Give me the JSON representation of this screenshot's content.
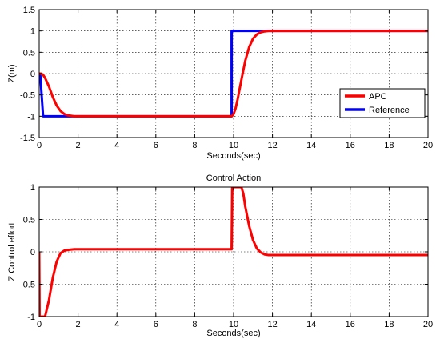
{
  "chart_data": [
    {
      "type": "line",
      "title": "",
      "xlabel": "Seconds(sec)",
      "ylabel": "Z(m)",
      "xlim": [
        0,
        20
      ],
      "ylim": [
        -1.5,
        1.5
      ],
      "xticks": [
        0,
        2,
        4,
        6,
        8,
        10,
        12,
        14,
        16,
        18,
        20
      ],
      "xtick_labels": [
        "0",
        "2",
        "4",
        "6",
        "8",
        "10",
        "12",
        "14",
        "16",
        "18",
        "20"
      ],
      "yticks": [
        -1.5,
        -1,
        -0.5,
        0,
        0.5,
        1,
        1.5
      ],
      "ytick_labels": [
        "-1.5",
        "-1",
        "-0.5",
        "0",
        "0.5",
        "1",
        "1.5"
      ],
      "grid": true,
      "legend": {
        "placement": "right",
        "entries": [
          "APC",
          "Reference"
        ]
      },
      "series": [
        {
          "name": "APC",
          "color": "#ff0000",
          "x": [
            0,
            0.1,
            0.2,
            0.3,
            0.5,
            0.7,
            0.9,
            1.1,
            1.3,
            1.5,
            1.8,
            2.2,
            3,
            6,
            9.9,
            10,
            10.1,
            10.2,
            10.4,
            10.6,
            10.8,
            11,
            11.2,
            11.4,
            11.6,
            11.8,
            12,
            13,
            20
          ],
          "y": [
            0,
            0,
            -0.03,
            -0.1,
            -0.3,
            -0.55,
            -0.75,
            -0.88,
            -0.95,
            -0.98,
            -1,
            -1,
            -1,
            -1,
            -1,
            -0.95,
            -0.82,
            -0.62,
            -0.15,
            0.3,
            0.62,
            0.82,
            0.92,
            0.97,
            0.99,
            1,
            1,
            1,
            1
          ]
        },
        {
          "name": "Reference",
          "color": "#0000ff",
          "x": [
            0,
            0.05,
            0.2,
            9.9,
            9.9,
            20
          ],
          "y": [
            0,
            0,
            -1,
            -1,
            1,
            1
          ]
        }
      ]
    },
    {
      "type": "line",
      "title": "Control Action",
      "xlabel": "Seconds(sec)",
      "ylabel": "Z Control effort",
      "xlim": [
        0,
        20
      ],
      "ylim": [
        -1,
        1
      ],
      "xticks": [
        0,
        2,
        4,
        6,
        8,
        10,
        12,
        14,
        16,
        18,
        20
      ],
      "xtick_labels": [
        "0",
        "2",
        "4",
        "6",
        "8",
        "10",
        "12",
        "14",
        "16",
        "18",
        "20"
      ],
      "yticks": [
        -1,
        -0.5,
        0,
        0.5,
        1
      ],
      "ytick_labels": [
        "-1",
        "-0.5",
        "0",
        "0.5",
        "1"
      ],
      "grid": true,
      "series": [
        {
          "name": "",
          "color": "#ff0000",
          "x": [
            0,
            0.02,
            0.05,
            0.3,
            0.5,
            0.7,
            0.9,
            1.1,
            1.3,
            1.5,
            1.8,
            2.2,
            3,
            6,
            9.9,
            9.93,
            10.1,
            10.3,
            10.4,
            10.5,
            10.6,
            10.8,
            11,
            11.2,
            11.4,
            11.6,
            11.8,
            12.2,
            13,
            20
          ],
          "y": [
            0,
            -1,
            -1,
            -1,
            -0.75,
            -0.4,
            -0.15,
            -0.02,
            0.02,
            0.03,
            0.04,
            0.04,
            0.04,
            0.04,
            0.04,
            1,
            1,
            1,
            1,
            0.9,
            0.7,
            0.4,
            0.18,
            0.05,
            -0.01,
            -0.04,
            -0.05,
            -0.05,
            -0.05,
            -0.05
          ]
        }
      ]
    }
  ]
}
